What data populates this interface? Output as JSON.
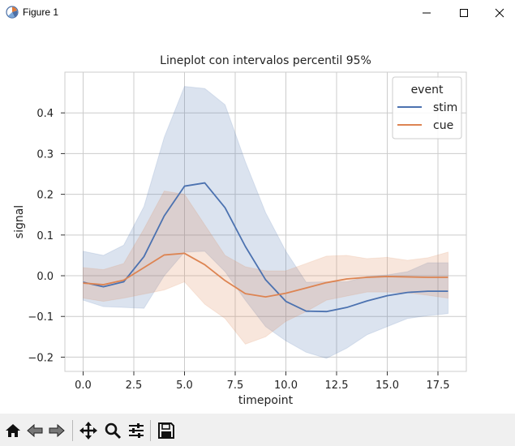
{
  "window": {
    "title": "Figure 1",
    "icons": [
      "app-icon",
      "minimize-icon",
      "maximize-icon",
      "close-icon"
    ]
  },
  "toolbar": {
    "icons": [
      "home-icon",
      "back-icon",
      "forward-icon",
      "pan-icon",
      "zoom-icon",
      "configure-subplots-icon",
      "save-icon"
    ]
  },
  "colors": {
    "stim": "#4c72b0",
    "cue": "#dd8452",
    "grid": "#cccccc",
    "toolbar_bg": "#f0f0f0"
  },
  "chart_data": {
    "type": "line",
    "title": "Lineplot con intervalos percentil 95%",
    "xlabel": "timepoint",
    "ylabel": "signal",
    "xlim": [
      -0.9,
      18.9
    ],
    "ylim": [
      -0.235,
      0.5
    ],
    "xticks": [
      0.0,
      2.5,
      5.0,
      7.5,
      10.0,
      12.5,
      15.0,
      17.5
    ],
    "xtick_labels": [
      "0.0",
      "2.5",
      "5.0",
      "7.5",
      "10.0",
      "12.5",
      "15.0",
      "17.5"
    ],
    "yticks": [
      -0.2,
      -0.1,
      0.0,
      0.1,
      0.2,
      0.3,
      0.4
    ],
    "ytick_labels": [
      "−0.2",
      "−0.1",
      "0.0",
      "0.1",
      "0.2",
      "0.3",
      "0.4"
    ],
    "grid": true,
    "legend": {
      "title": "event",
      "position": "top-right"
    },
    "x": [
      0,
      1,
      2,
      3,
      4,
      5,
      6,
      7,
      8,
      9,
      10,
      11,
      12,
      13,
      14,
      15,
      16,
      17,
      18
    ],
    "series": [
      {
        "name": "stim",
        "color": "#4c72b0",
        "values": [
          -0.016,
          -0.027,
          -0.015,
          0.047,
          0.147,
          0.22,
          0.228,
          0.167,
          0.072,
          -0.01,
          -0.063,
          -0.087,
          -0.088,
          -0.078,
          -0.062,
          -0.049,
          -0.041,
          -0.038,
          -0.038
        ],
        "ci_lower": [
          -0.06,
          -0.076,
          -0.078,
          -0.08,
          0.0,
          0.058,
          0.06,
          0.01,
          -0.06,
          -0.125,
          -0.16,
          -0.188,
          -0.203,
          -0.178,
          -0.145,
          -0.125,
          -0.105,
          -0.098,
          -0.093
        ],
        "ci_upper": [
          0.06,
          0.05,
          0.075,
          0.17,
          0.34,
          0.465,
          0.46,
          0.42,
          0.28,
          0.155,
          0.06,
          -0.016,
          -0.015,
          -0.015,
          -0.002,
          0.002,
          0.01,
          0.032,
          0.032
        ]
      },
      {
        "name": "cue",
        "color": "#dd8452",
        "values": [
          -0.018,
          -0.022,
          -0.011,
          0.02,
          0.051,
          0.055,
          0.027,
          -0.012,
          -0.044,
          -0.052,
          -0.043,
          -0.03,
          -0.017,
          -0.008,
          -0.004,
          -0.002,
          -0.003,
          -0.004,
          -0.004
        ],
        "ci_lower": [
          -0.055,
          -0.063,
          -0.055,
          -0.045,
          -0.035,
          -0.015,
          -0.07,
          -0.105,
          -0.168,
          -0.15,
          -0.112,
          -0.088,
          -0.06,
          -0.05,
          -0.04,
          -0.04,
          -0.042,
          -0.048,
          -0.055
        ],
        "ci_upper": [
          0.02,
          0.015,
          0.03,
          0.115,
          0.208,
          0.2,
          0.125,
          0.05,
          0.022,
          0.012,
          0.012,
          0.03,
          0.048,
          0.05,
          0.042,
          0.045,
          0.038,
          0.044,
          0.058
        ]
      }
    ]
  }
}
